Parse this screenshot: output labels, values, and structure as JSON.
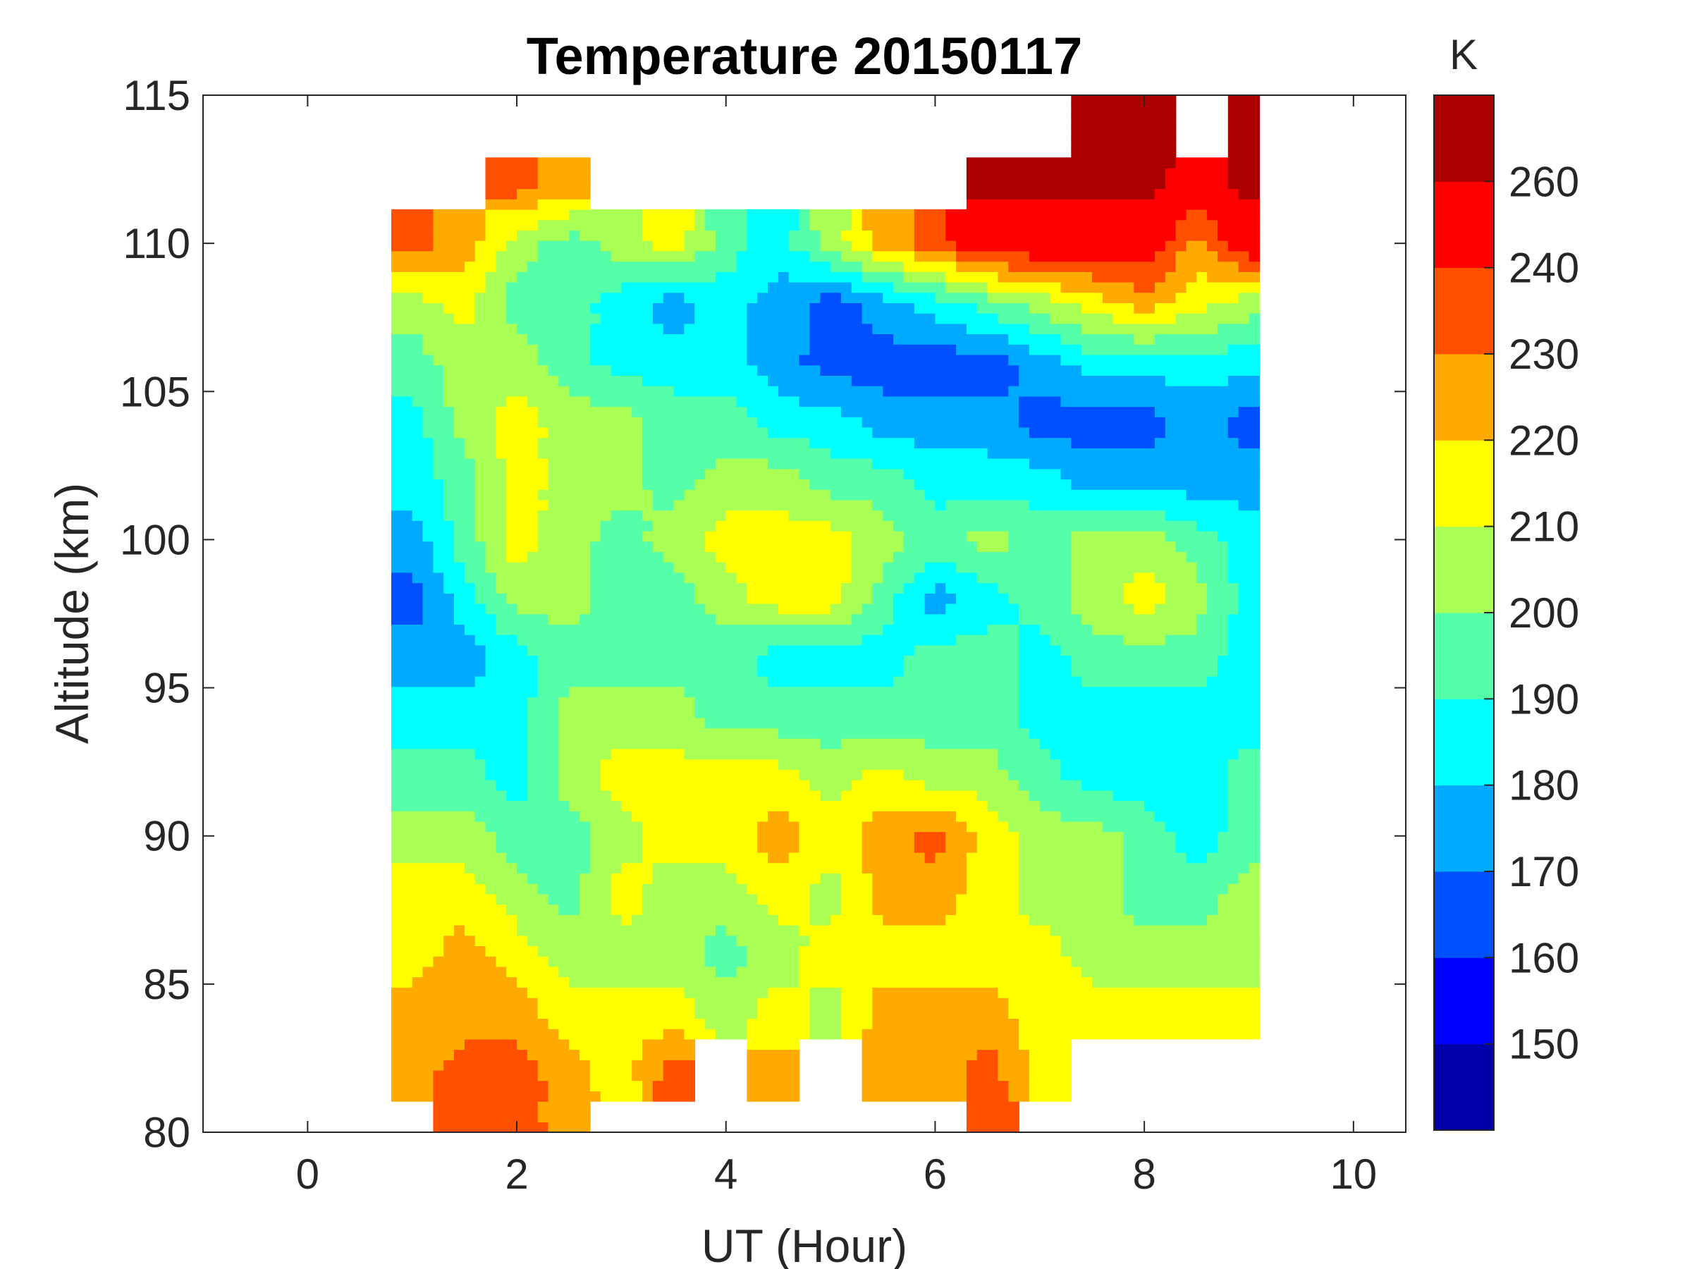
{
  "chart_data": {
    "type": "heatmap",
    "subtype": "filled-contour",
    "title": "Temperature 20150117",
    "xlabel": "UT (Hour)",
    "ylabel": "Altitude (km)",
    "xlim": [
      -1,
      10.5
    ],
    "ylim": [
      80,
      115
    ],
    "xticks": [
      "0",
      "2",
      "4",
      "6",
      "8",
      "10"
    ],
    "xtick_values": [
      0,
      2,
      4,
      6,
      8,
      10
    ],
    "yticks": [
      "80",
      "85",
      "90",
      "95",
      "100",
      "105",
      "110",
      "115"
    ],
    "ytick_values": [
      80,
      85,
      90,
      95,
      100,
      105,
      110,
      115
    ],
    "data_x_range": [
      0.8,
      9.1
    ],
    "x": [
      1,
      1.5,
      2,
      2.5,
      3,
      3.5,
      4,
      4.5,
      5,
      5.5,
      6,
      6.5,
      7,
      7.5,
      8,
      8.5,
      9
    ],
    "y": [
      114,
      112,
      110,
      108,
      106,
      104,
      102,
      100,
      98,
      96,
      94,
      92,
      90,
      88,
      86,
      84,
      82,
      80
    ],
    "z": [
      [
        null,
        null,
        null,
        null,
        null,
        null,
        null,
        null,
        null,
        null,
        null,
        null,
        null,
        265,
        265,
        null,
        265
      ],
      [
        null,
        null,
        235,
        225,
        null,
        null,
        null,
        null,
        null,
        null,
        null,
        265,
        265,
        265,
        265,
        250,
        265
      ],
      [
        235,
        225,
        205,
        195,
        205,
        215,
        195,
        185,
        205,
        225,
        235,
        250,
        250,
        250,
        250,
        225,
        250
      ],
      [
        205,
        215,
        195,
        195,
        185,
        175,
        185,
        175,
        165,
        175,
        185,
        195,
        205,
        215,
        225,
        215,
        205
      ],
      [
        195,
        205,
        205,
        195,
        185,
        185,
        185,
        175,
        165,
        165,
        165,
        165,
        175,
        185,
        185,
        185,
        185
      ],
      [
        185,
        205,
        215,
        205,
        205,
        195,
        195,
        185,
        185,
        175,
        175,
        175,
        165,
        165,
        165,
        175,
        165
      ],
      [
        185,
        195,
        215,
        205,
        205,
        195,
        205,
        205,
        195,
        195,
        185,
        185,
        185,
        175,
        175,
        175,
        175
      ],
      [
        175,
        195,
        215,
        205,
        195,
        205,
        215,
        215,
        215,
        205,
        195,
        205,
        195,
        205,
        205,
        195,
        185
      ],
      [
        165,
        185,
        205,
        205,
        195,
        195,
        205,
        215,
        215,
        195,
        175,
        185,
        195,
        205,
        215,
        205,
        185
      ],
      [
        175,
        175,
        185,
        195,
        195,
        195,
        195,
        185,
        185,
        185,
        195,
        195,
        185,
        195,
        195,
        195,
        185
      ],
      [
        185,
        185,
        185,
        205,
        205,
        205,
        195,
        195,
        195,
        195,
        195,
        195,
        185,
        185,
        185,
        185,
        185
      ],
      [
        195,
        195,
        185,
        205,
        215,
        215,
        215,
        215,
        205,
        215,
        205,
        205,
        195,
        185,
        185,
        185,
        195
      ],
      [
        205,
        205,
        195,
        195,
        205,
        215,
        215,
        225,
        215,
        225,
        235,
        215,
        205,
        205,
        195,
        185,
        195
      ],
      [
        215,
        215,
        205,
        195,
        215,
        205,
        205,
        215,
        205,
        225,
        225,
        215,
        205,
        205,
        195,
        195,
        205
      ],
      [
        215,
        225,
        215,
        205,
        205,
        205,
        195,
        205,
        215,
        215,
        215,
        215,
        215,
        205,
        205,
        205,
        205
      ],
      [
        225,
        225,
        225,
        215,
        215,
        215,
        205,
        215,
        205,
        225,
        225,
        225,
        215,
        215,
        215,
        215,
        215
      ],
      [
        225,
        235,
        235,
        225,
        215,
        235,
        null,
        225,
        null,
        225,
        225,
        235,
        215,
        null,
        null,
        null,
        null
      ],
      [
        null,
        235,
        235,
        225,
        null,
        null,
        null,
        null,
        null,
        null,
        null,
        235,
        null,
        null,
        null,
        null,
        null
      ]
    ],
    "colorbar": {
      "label": "K",
      "levels": [
        140,
        150,
        160,
        170,
        180,
        190,
        200,
        210,
        220,
        230,
        240,
        260,
        270
      ],
      "colors": [
        "#0000AA",
        "#0000FF",
        "#0050FF",
        "#00AAFF",
        "#00FFFF",
        "#55FFAA",
        "#AAFF55",
        "#FFFF00",
        "#FFAA00",
        "#FF5000",
        "#FF0000",
        "#AA0000"
      ],
      "tick_labels": [
        "150",
        "160",
        "170",
        "180",
        "190",
        "200",
        "210",
        "220",
        "230",
        "240",
        "260"
      ],
      "tick_values": [
        150,
        160,
        170,
        180,
        190,
        200,
        210,
        220,
        230,
        240,
        260
      ]
    },
    "grid": false
  }
}
